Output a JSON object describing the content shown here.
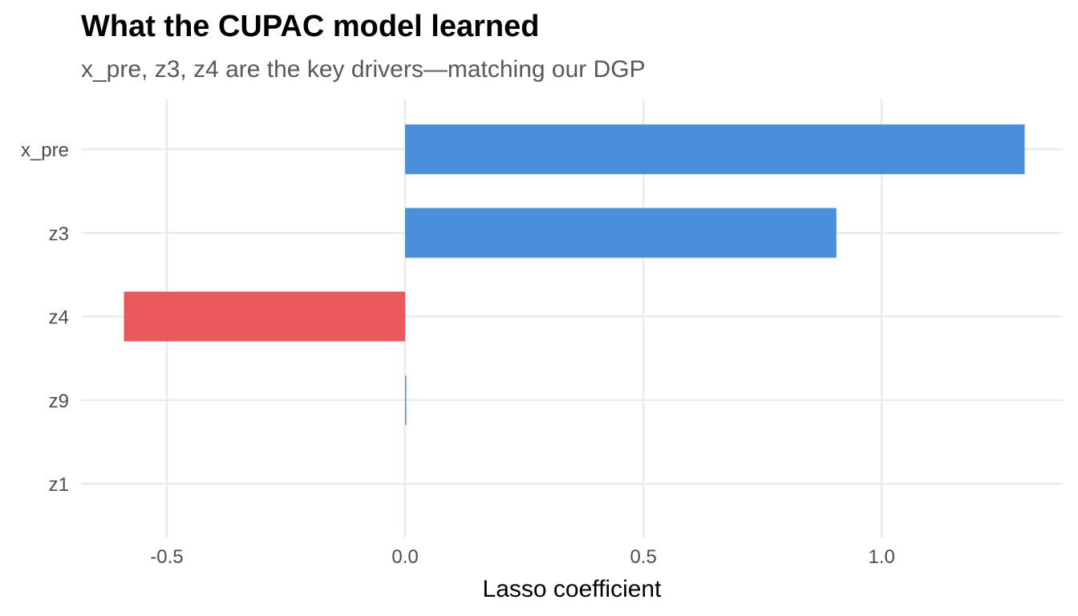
{
  "chart_data": {
    "type": "bar",
    "orientation": "horizontal",
    "title": "What the CUPAC model learned",
    "subtitle": "x_pre, z3, z4 are the key drivers—matching our DGP",
    "xlabel": "Lasso coefficient",
    "ylabel": "",
    "categories": [
      "x_pre",
      "z3",
      "z4",
      "z9",
      "z1"
    ],
    "values": [
      1.3,
      0.905,
      -0.59,
      0.002,
      0
    ],
    "xlim": [
      -0.68,
      1.38
    ],
    "x_ticks": [
      -0.5,
      0.0,
      0.5,
      1.0
    ],
    "x_tick_labels": [
      "-0.5",
      "0.0",
      "0.5",
      "1.0"
    ],
    "colors": {
      "positive": "#4A90D9",
      "negative": "#E8585C",
      "grid": "#EBEBEB"
    },
    "grid": true,
    "legend": "none"
  }
}
